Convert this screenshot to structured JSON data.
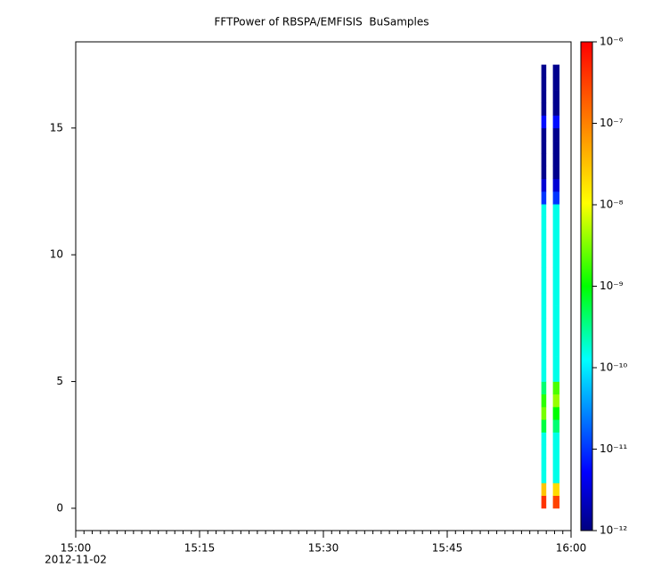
{
  "chart_data": {
    "type": "spectrogram",
    "title": "FFTPower of RBSPA/EMFISIS  BuSamples",
    "xlim": [
      0,
      60
    ],
    "xticks": [
      {
        "value": 0,
        "label": "15:00"
      },
      {
        "value": 15,
        "label": "15:15"
      },
      {
        "value": 30,
        "label": "15:30"
      },
      {
        "value": 45,
        "label": "15:45"
      },
      {
        "value": 60,
        "label": "16:00"
      }
    ],
    "xminorticks": [
      1,
      2,
      3,
      4,
      5,
      6,
      7,
      8,
      9,
      10,
      11,
      12,
      13,
      14,
      16,
      17,
      18,
      19,
      20,
      21,
      22,
      23,
      24,
      25,
      26,
      27,
      28,
      29,
      31,
      32,
      33,
      34,
      35,
      36,
      37,
      38,
      39,
      40,
      41,
      42,
      43,
      44,
      46,
      47,
      48,
      49,
      50,
      51,
      52,
      53,
      54,
      55,
      56,
      57,
      58,
      59
    ],
    "date_label": "2012-11-02",
    "ylim": [
      -0.88,
      18.4
    ],
    "yticks": [
      0,
      5,
      10,
      15
    ],
    "bins": [
      0,
      0.5,
      1,
      1.5,
      2,
      2.5,
      3,
      3.5,
      4,
      4.5,
      5,
      5.5,
      6,
      6.5,
      7,
      7.5,
      8,
      8.5,
      9,
      9.5,
      10,
      10.5,
      11,
      11.5,
      12,
      12.5,
      13,
      13.5,
      14,
      14.5,
      15,
      15.5,
      16,
      16.5,
      17,
      17.5
    ],
    "columns": [
      {
        "x0": 56.4,
        "x1": 57.0,
        "values": [
          4e-07,
          3e-08,
          1.5e-10,
          1.5e-10,
          1.5e-10,
          1.5e-10,
          6e-10,
          3e-09,
          1.5e-09,
          4e-10,
          1.5e-10,
          1.5e-10,
          1.5e-10,
          1.5e-10,
          1.5e-10,
          1.5e-10,
          1.5e-10,
          1.5e-10,
          1.5e-10,
          1.5e-10,
          1.5e-10,
          1.5e-10,
          1.5e-10,
          1.5e-10,
          1e-11,
          3e-12,
          1.2e-12,
          1.2e-12,
          1.2e-12,
          1.2e-12,
          6e-12,
          1.2e-12,
          1.2e-12,
          1.2e-12,
          1.2e-12
        ]
      },
      {
        "x0": 57.8,
        "x1": 58.6,
        "values": [
          3e-07,
          2e-08,
          1.5e-10,
          1.5e-10,
          1.5e-10,
          1.5e-10,
          4e-10,
          1e-09,
          4e-09,
          2e-09,
          1.5e-10,
          1.5e-10,
          1.5e-10,
          1.5e-10,
          1.5e-10,
          1.5e-10,
          1.5e-10,
          1.5e-10,
          1.5e-10,
          1.5e-10,
          1.5e-10,
          1.5e-10,
          1.5e-10,
          1.5e-10,
          1e-11,
          3e-12,
          1.2e-12,
          1.2e-12,
          1.2e-12,
          1.2e-12,
          6e-12,
          1.2e-12,
          1.2e-12,
          1.2e-12,
          1.2e-12
        ]
      }
    ],
    "colorbar": {
      "log": true,
      "lim": [
        1e-12,
        1e-06
      ],
      "ticks": [
        {
          "value": 1e-06,
          "label": "10⁻⁶"
        },
        {
          "value": 1e-07,
          "label": "10⁻⁷"
        },
        {
          "value": 1e-08,
          "label": "10⁻⁸"
        },
        {
          "value": 1e-09,
          "label": "10⁻⁹"
        },
        {
          "value": 1e-10,
          "label": "10⁻¹⁰"
        },
        {
          "value": 1e-11,
          "label": "10⁻¹¹"
        },
        {
          "value": 1e-12,
          "label": "10⁻¹²"
        }
      ],
      "colors": [
        "#000080",
        "#0000ff",
        "#00ffff",
        "#00ff00",
        "#ffff00",
        "#ff0000"
      ]
    }
  }
}
